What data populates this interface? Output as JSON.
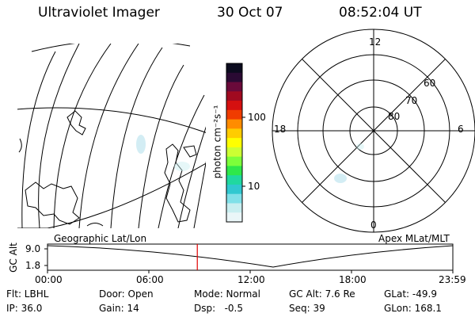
{
  "header": {
    "instrument": "Ultraviolet Imager",
    "date": "30 Oct 07",
    "time": "08:52:04 UT"
  },
  "colorbar": {
    "unit_label": "photon cm⁻²s⁻¹",
    "ticks": [
      "100",
      "10"
    ],
    "colors": [
      "#0b0b1e",
      "#2a0a33",
      "#6a0a3a",
      "#a00a20",
      "#d51010",
      "#f03c00",
      "#ff8c00",
      "#ffcc00",
      "#ffff00",
      "#ccff33",
      "#7dff3a",
      "#2ee84a",
      "#20d8a0",
      "#30c8d0",
      "#80e0e8",
      "#c8eef0",
      "#eaf6f8"
    ]
  },
  "left_map": {
    "label": "Geographic Lat/Lon"
  },
  "right_map": {
    "label": "Apex MLat/MLT",
    "mlt_labels": {
      "top": "12",
      "left": "18",
      "right": "6",
      "bottom": "0"
    },
    "mlat_labels": [
      "60",
      "70",
      "80"
    ]
  },
  "timeline": {
    "ylabel": "GC Alt",
    "yticks": [
      "9.0",
      "1.8"
    ],
    "xticks": [
      "00:00",
      "06:00",
      "12:00",
      "18:00",
      "23:59"
    ],
    "current_time_hours": 8.87,
    "marker_color": "#e00000"
  },
  "info": {
    "row1": [
      "Flt: LBHL",
      "Door: Open",
      "Mode: Normal",
      "GC Alt: 7.6 Re",
      "GLat: -49.9"
    ],
    "row2": [
      "IP: 36.0",
      "Gain: 14",
      "Dsp:   -0.5",
      "Seq: 39",
      "GLon: 168.1"
    ]
  }
}
